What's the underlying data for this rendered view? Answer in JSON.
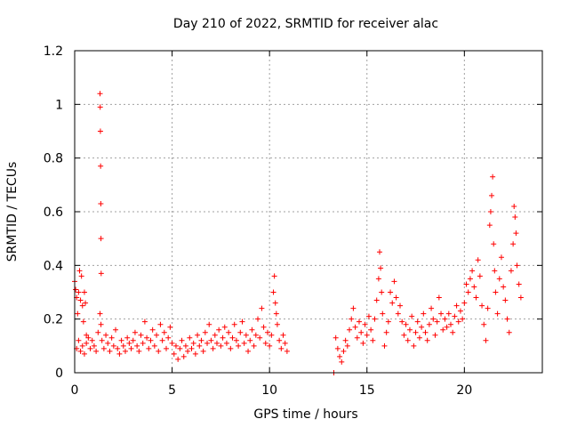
{
  "chart_data": {
    "type": "scatter",
    "title": "Day 210 of 2022, SRMTID for receiver alac",
    "xlabel": "GPS time / hours",
    "ylabel": "SRMTID / TECUs",
    "xlim": [
      0,
      24
    ],
    "ylim": [
      0,
      1.2
    ],
    "x_ticks": [
      0,
      5,
      10,
      15,
      20
    ],
    "x_tick_labels": [
      "0",
      "5",
      "10",
      "15",
      "20"
    ],
    "y_ticks": [
      0,
      0.2,
      0.4,
      0.6,
      0.8,
      1,
      1.2
    ],
    "y_tick_labels": [
      "0",
      "0.2",
      "0.4",
      "0.6",
      "0.8",
      "1",
      "1.2"
    ],
    "grid": true,
    "marker": "+",
    "series_color": "#ff0000",
    "series": [
      {
        "name": "SRMTID",
        "points": [
          [
            0.0,
            0.34
          ],
          [
            0.05,
            0.31
          ],
          [
            0.1,
            0.28
          ],
          [
            0.15,
            0.22
          ],
          [
            0.2,
            0.3
          ],
          [
            0.25,
            0.38
          ],
          [
            0.3,
            0.27
          ],
          [
            0.35,
            0.36
          ],
          [
            0.4,
            0.25
          ],
          [
            0.45,
            0.19
          ],
          [
            0.5,
            0.3
          ],
          [
            0.55,
            0.26
          ],
          [
            0.6,
            0.14
          ],
          [
            0.1,
            0.09
          ],
          [
            0.2,
            0.12
          ],
          [
            0.3,
            0.08
          ],
          [
            0.4,
            0.1
          ],
          [
            0.5,
            0.07
          ],
          [
            0.6,
            0.11
          ],
          [
            0.7,
            0.13
          ],
          [
            0.8,
            0.09
          ],
          [
            0.9,
            0.12
          ],
          [
            1.0,
            0.1
          ],
          [
            1.1,
            0.08
          ],
          [
            1.2,
            0.15
          ],
          [
            1.3,
            1.04
          ],
          [
            1.31,
            0.99
          ],
          [
            1.32,
            0.9
          ],
          [
            1.33,
            0.77
          ],
          [
            1.34,
            0.63
          ],
          [
            1.35,
            0.5
          ],
          [
            1.36,
            0.37
          ],
          [
            1.3,
            0.22
          ],
          [
            1.35,
            0.18
          ],
          [
            1.4,
            0.12
          ],
          [
            1.5,
            0.09
          ],
          [
            1.6,
            0.14
          ],
          [
            1.7,
            0.11
          ],
          [
            1.8,
            0.08
          ],
          [
            1.9,
            0.13
          ],
          [
            2.0,
            0.1
          ],
          [
            2.1,
            0.16
          ],
          [
            2.2,
            0.09
          ],
          [
            2.3,
            0.07
          ],
          [
            2.4,
            0.12
          ],
          [
            2.5,
            0.1
          ],
          [
            2.6,
            0.08
          ],
          [
            2.7,
            0.13
          ],
          [
            2.8,
            0.11
          ],
          [
            2.9,
            0.09
          ],
          [
            3.0,
            0.12
          ],
          [
            3.1,
            0.15
          ],
          [
            3.2,
            0.1
          ],
          [
            3.3,
            0.08
          ],
          [
            3.4,
            0.14
          ],
          [
            3.5,
            0.11
          ],
          [
            3.6,
            0.19
          ],
          [
            3.7,
            0.13
          ],
          [
            3.8,
            0.09
          ],
          [
            3.9,
            0.12
          ],
          [
            4.0,
            0.16
          ],
          [
            4.1,
            0.1
          ],
          [
            4.2,
            0.14
          ],
          [
            4.3,
            0.08
          ],
          [
            4.4,
            0.18
          ],
          [
            4.5,
            0.12
          ],
          [
            4.6,
            0.15
          ],
          [
            4.7,
            0.09
          ],
          [
            4.8,
            0.13
          ],
          [
            4.9,
            0.17
          ],
          [
            5.0,
            0.11
          ],
          [
            5.1,
            0.07
          ],
          [
            5.2,
            0.1
          ],
          [
            5.3,
            0.05
          ],
          [
            5.4,
            0.09
          ],
          [
            5.5,
            0.12
          ],
          [
            5.6,
            0.06
          ],
          [
            5.7,
            0.1
          ],
          [
            5.8,
            0.08
          ],
          [
            5.9,
            0.13
          ],
          [
            6.0,
            0.09
          ],
          [
            6.1,
            0.11
          ],
          [
            6.2,
            0.07
          ],
          [
            6.3,
            0.14
          ],
          [
            6.4,
            0.1
          ],
          [
            6.5,
            0.12
          ],
          [
            6.6,
            0.08
          ],
          [
            6.7,
            0.15
          ],
          [
            6.8,
            0.11
          ],
          [
            6.9,
            0.18
          ],
          [
            7.0,
            0.12
          ],
          [
            7.1,
            0.09
          ],
          [
            7.2,
            0.14
          ],
          [
            7.3,
            0.11
          ],
          [
            7.4,
            0.16
          ],
          [
            7.5,
            0.1
          ],
          [
            7.6,
            0.13
          ],
          [
            7.7,
            0.17
          ],
          [
            7.8,
            0.11
          ],
          [
            7.9,
            0.15
          ],
          [
            8.0,
            0.09
          ],
          [
            8.1,
            0.13
          ],
          [
            8.2,
            0.18
          ],
          [
            8.3,
            0.12
          ],
          [
            8.4,
            0.1
          ],
          [
            8.5,
            0.15
          ],
          [
            8.6,
            0.19
          ],
          [
            8.7,
            0.11
          ],
          [
            8.8,
            0.14
          ],
          [
            8.9,
            0.08
          ],
          [
            9.0,
            0.12
          ],
          [
            9.1,
            0.16
          ],
          [
            9.2,
            0.1
          ],
          [
            9.3,
            0.14
          ],
          [
            9.4,
            0.2
          ],
          [
            9.5,
            0.13
          ],
          [
            9.6,
            0.24
          ],
          [
            9.7,
            0.17
          ],
          [
            9.8,
            0.11
          ],
          [
            9.9,
            0.15
          ],
          [
            10.0,
            0.1
          ],
          [
            10.1,
            0.14
          ],
          [
            10.2,
            0.3
          ],
          [
            10.25,
            0.36
          ],
          [
            10.3,
            0.26
          ],
          [
            10.35,
            0.22
          ],
          [
            10.4,
            0.18
          ],
          [
            10.5,
            0.12
          ],
          [
            10.6,
            0.09
          ],
          [
            10.7,
            0.14
          ],
          [
            10.8,
            0.11
          ],
          [
            10.9,
            0.08
          ],
          [
            13.3,
            0.0
          ],
          [
            13.4,
            0.13
          ],
          [
            13.5,
            0.09
          ],
          [
            13.6,
            0.06
          ],
          [
            13.7,
            0.04
          ],
          [
            13.8,
            0.08
          ],
          [
            13.9,
            0.12
          ],
          [
            14.0,
            0.1
          ],
          [
            14.1,
            0.16
          ],
          [
            14.2,
            0.2
          ],
          [
            14.3,
            0.24
          ],
          [
            14.4,
            0.17
          ],
          [
            14.5,
            0.13
          ],
          [
            14.6,
            0.19
          ],
          [
            14.7,
            0.15
          ],
          [
            14.8,
            0.11
          ],
          [
            14.9,
            0.18
          ],
          [
            15.0,
            0.14
          ],
          [
            15.1,
            0.21
          ],
          [
            15.2,
            0.16
          ],
          [
            15.3,
            0.12
          ],
          [
            15.4,
            0.2
          ],
          [
            15.5,
            0.27
          ],
          [
            15.6,
            0.35
          ],
          [
            15.65,
            0.45
          ],
          [
            15.7,
            0.39
          ],
          [
            15.75,
            0.3
          ],
          [
            15.8,
            0.22
          ],
          [
            15.9,
            0.1
          ],
          [
            16.0,
            0.15
          ],
          [
            16.1,
            0.19
          ],
          [
            16.2,
            0.3
          ],
          [
            16.3,
            0.26
          ],
          [
            16.4,
            0.34
          ],
          [
            16.5,
            0.28
          ],
          [
            16.6,
            0.22
          ],
          [
            16.7,
            0.25
          ],
          [
            16.8,
            0.19
          ],
          [
            16.9,
            0.14
          ],
          [
            17.0,
            0.18
          ],
          [
            17.1,
            0.12
          ],
          [
            17.2,
            0.16
          ],
          [
            17.3,
            0.21
          ],
          [
            17.4,
            0.1
          ],
          [
            17.5,
            0.15
          ],
          [
            17.6,
            0.19
          ],
          [
            17.7,
            0.13
          ],
          [
            17.8,
            0.17
          ],
          [
            17.9,
            0.22
          ],
          [
            18.0,
            0.15
          ],
          [
            18.1,
            0.12
          ],
          [
            18.2,
            0.18
          ],
          [
            18.3,
            0.24
          ],
          [
            18.4,
            0.2
          ],
          [
            18.5,
            0.14
          ],
          [
            18.6,
            0.19
          ],
          [
            18.7,
            0.28
          ],
          [
            18.8,
            0.22
          ],
          [
            18.9,
            0.16
          ],
          [
            19.0,
            0.2
          ],
          [
            19.1,
            0.17
          ],
          [
            19.2,
            0.22
          ],
          [
            19.3,
            0.18
          ],
          [
            19.4,
            0.15
          ],
          [
            19.5,
            0.21
          ],
          [
            19.6,
            0.25
          ],
          [
            19.7,
            0.19
          ],
          [
            19.8,
            0.23
          ],
          [
            19.9,
            0.2
          ],
          [
            20.0,
            0.26
          ],
          [
            20.1,
            0.33
          ],
          [
            20.2,
            0.3
          ],
          [
            20.3,
            0.35
          ],
          [
            20.4,
            0.38
          ],
          [
            20.5,
            0.32
          ],
          [
            20.6,
            0.28
          ],
          [
            20.7,
            0.42
          ],
          [
            20.8,
            0.36
          ],
          [
            20.9,
            0.25
          ],
          [
            21.0,
            0.18
          ],
          [
            21.1,
            0.12
          ],
          [
            21.2,
            0.24
          ],
          [
            21.3,
            0.55
          ],
          [
            21.35,
            0.6
          ],
          [
            21.4,
            0.66
          ],
          [
            21.45,
            0.73
          ],
          [
            21.5,
            0.48
          ],
          [
            21.55,
            0.38
          ],
          [
            21.6,
            0.3
          ],
          [
            21.7,
            0.22
          ],
          [
            21.8,
            0.35
          ],
          [
            21.9,
            0.43
          ],
          [
            22.0,
            0.32
          ],
          [
            22.1,
            0.27
          ],
          [
            22.2,
            0.2
          ],
          [
            22.3,
            0.15
          ],
          [
            22.4,
            0.38
          ],
          [
            22.5,
            0.48
          ],
          [
            22.55,
            0.62
          ],
          [
            22.6,
            0.58
          ],
          [
            22.65,
            0.52
          ],
          [
            22.7,
            0.4
          ],
          [
            22.8,
            0.33
          ],
          [
            22.9,
            0.28
          ]
        ]
      }
    ]
  }
}
